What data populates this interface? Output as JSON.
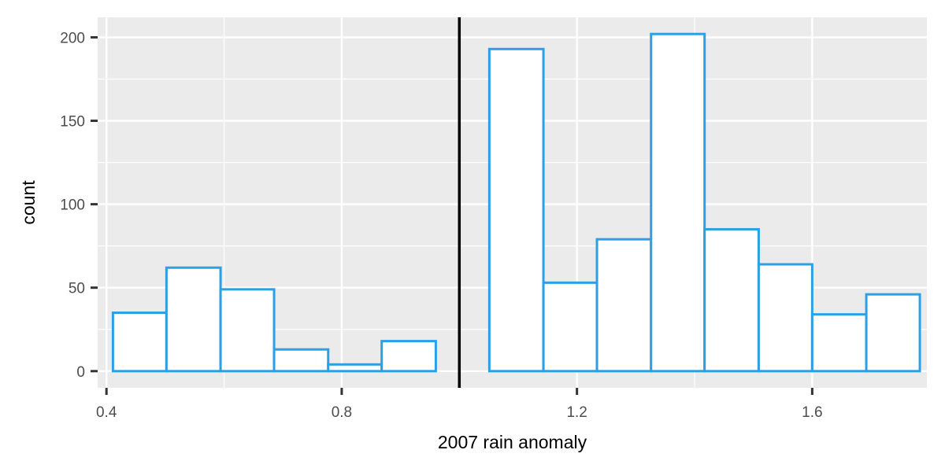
{
  "chart_data": {
    "type": "bar",
    "subtype": "histogram",
    "title": "",
    "xlabel": "2007 rain anomaly",
    "ylabel": "count",
    "xlim": [
      0.385,
      1.795
    ],
    "ylim": [
      -10,
      212
    ],
    "x_ticks": [
      0.4,
      0.8,
      1.2,
      1.6
    ],
    "x_tick_labels": [
      "0.4",
      "0.8",
      "1.2",
      "1.6"
    ],
    "y_ticks": [
      0,
      50,
      100,
      150,
      200
    ],
    "y_tick_labels": [
      "0",
      "50",
      "100",
      "150",
      "200"
    ],
    "bin_width": 0.0915,
    "bins": [
      {
        "x0": 0.411,
        "x1": 0.502,
        "count": 35
      },
      {
        "x0": 0.502,
        "x1": 0.594,
        "count": 62
      },
      {
        "x0": 0.594,
        "x1": 0.685,
        "count": 49
      },
      {
        "x0": 0.685,
        "x1": 0.777,
        "count": 13
      },
      {
        "x0": 0.777,
        "x1": 0.868,
        "count": 4
      },
      {
        "x0": 0.868,
        "x1": 0.96,
        "count": 18
      },
      {
        "x0": 0.96,
        "x1": 1.051,
        "count": 0
      },
      {
        "x0": 1.051,
        "x1": 1.143,
        "count": 193
      },
      {
        "x0": 1.143,
        "x1": 1.234,
        "count": 53
      },
      {
        "x0": 1.234,
        "x1": 1.326,
        "count": 79
      },
      {
        "x0": 1.326,
        "x1": 1.417,
        "count": 202
      },
      {
        "x0": 1.417,
        "x1": 1.509,
        "count": 85
      },
      {
        "x0": 1.509,
        "x1": 1.6,
        "count": 64
      },
      {
        "x0": 1.6,
        "x1": 1.692,
        "count": 34
      },
      {
        "x0": 1.692,
        "x1": 1.783,
        "count": 46
      }
    ],
    "reference_line": {
      "orientation": "vertical",
      "x": 1.0,
      "color": "#000000"
    },
    "bar_fill": "#ffffff",
    "bar_outline": "#2c9fe5",
    "panel_background": "#ebebeb",
    "grid": true,
    "legend": "none"
  }
}
